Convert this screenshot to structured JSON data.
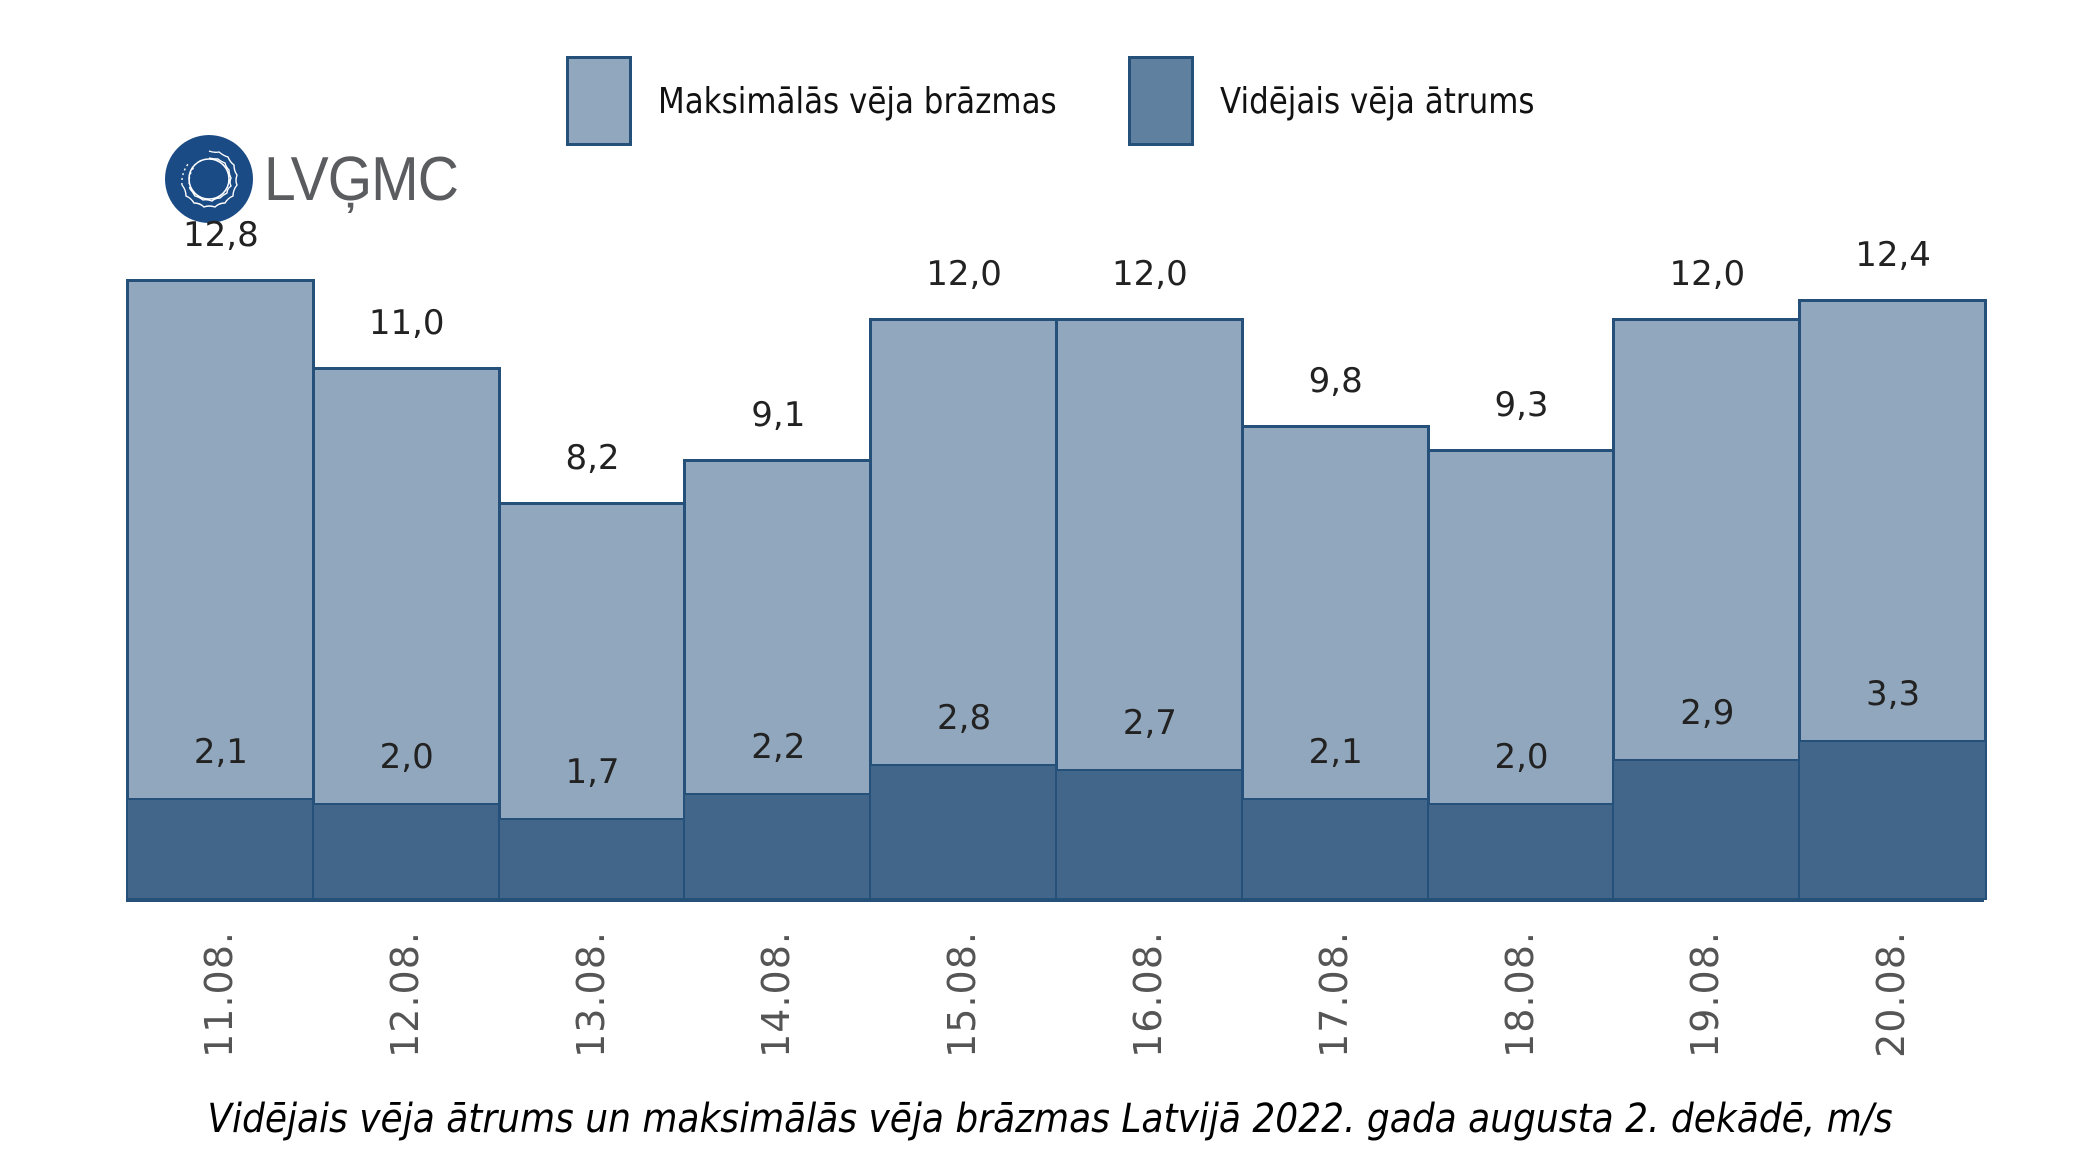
{
  "logo": {
    "text": "LVĢMC",
    "icon": "concentric-wave-circle-logo",
    "color": "#1b4b85"
  },
  "legend": [
    {
      "label": "Maksimālās vēja brāzmas",
      "color": "#91a7bd"
    },
    {
      "label": "Vidējais vēja ātrums",
      "color": "#5f819f"
    }
  ],
  "title": "Vidējais vēja ātrums un maksimālās vēja brāzmas Latvijā 2022. gada augusta 2. dekādē, m/s",
  "colors": {
    "max_fill": "#91a7bd",
    "avg_fill": "#416689",
    "border": "#25507a"
  },
  "chart_data": {
    "type": "bar",
    "title": "Vidējais vēja ātrums un maksimālās vēja brāzmas Latvijā 2022. gada augusta 2. dekādē, m/s",
    "xlabel": "",
    "ylabel": "m/s",
    "categories": [
      "11.08.",
      "12.08.",
      "13.08.",
      "14.08.",
      "15.08.",
      "16.08.",
      "17.08.",
      "18.08.",
      "19.08.",
      "20.08."
    ],
    "series": [
      {
        "name": "Maksimālās vēja brāzmas",
        "values": [
          12.8,
          11.0,
          8.2,
          9.1,
          12.0,
          12.0,
          9.8,
          9.3,
          12.0,
          12.4
        ],
        "labels": [
          "12,8",
          "11,0",
          "8,2",
          "9,1",
          "12,0",
          "12,0",
          "9,8",
          "9,3",
          "12,0",
          "12,4"
        ]
      },
      {
        "name": "Vidējais vēja ātrums",
        "values": [
          2.1,
          2.0,
          1.7,
          2.2,
          2.8,
          2.7,
          2.1,
          2.0,
          2.9,
          3.3
        ],
        "labels": [
          "2,1",
          "2,0",
          "1,7",
          "2,2",
          "2,8",
          "2,7",
          "2,1",
          "2,0",
          "2,9",
          "3,3"
        ]
      }
    ],
    "overlapped": true,
    "grid": false,
    "y_axis_visible": false,
    "legend_position": "top"
  }
}
